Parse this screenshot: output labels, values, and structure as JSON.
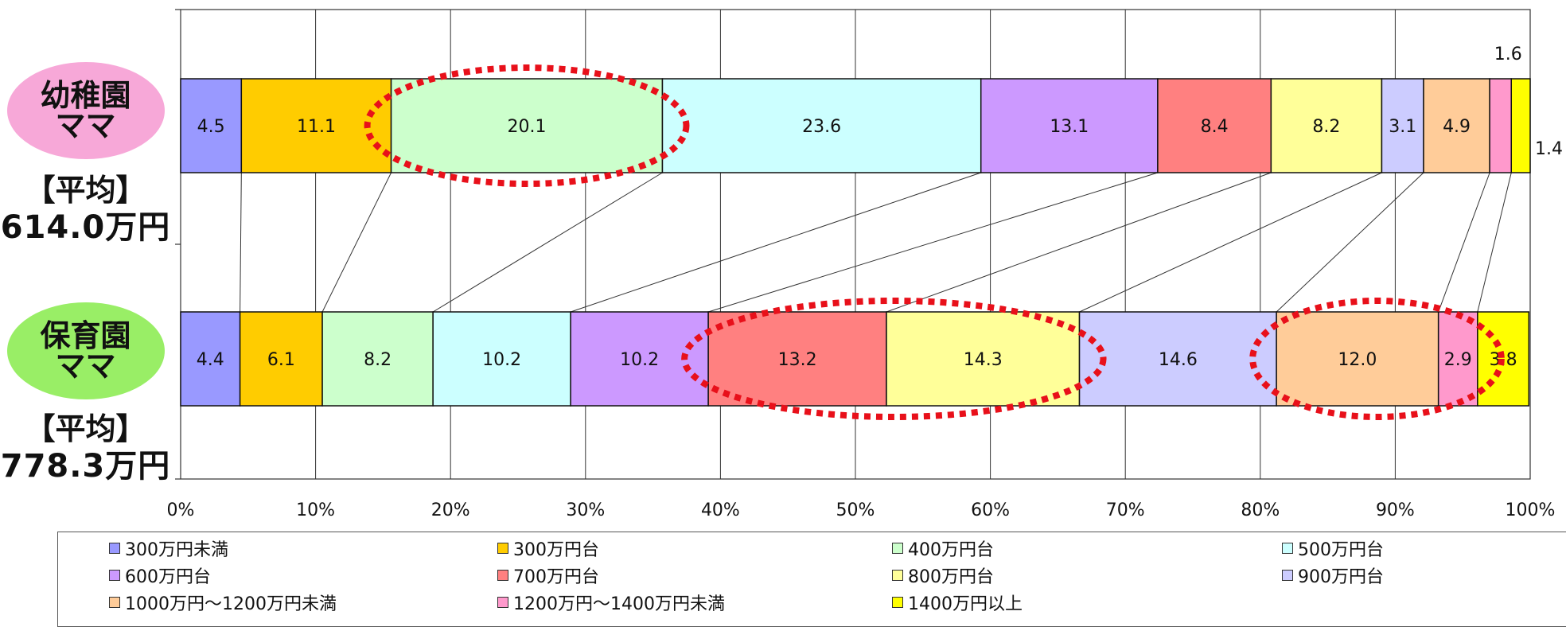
{
  "groups": [
    {
      "name": "幼稚園\nママ",
      "avg_head": "【平均】",
      "avg_value": "614.0万円",
      "bubble_color": "#F7A8D8"
    },
    {
      "name": "保育園\nママ",
      "avg_head": "【平均】",
      "avg_value": "778.3万円",
      "bubble_color": "#99EE66"
    }
  ],
  "chart_data": {
    "type": "bar",
    "orientation": "horizontal",
    "stacked": true,
    "percent": true,
    "categories": [
      "幼稚園ママ",
      "保育園ママ"
    ],
    "xlim": [
      0,
      100
    ],
    "x_ticks": [
      "0%",
      "10%",
      "20%",
      "30%",
      "40%",
      "50%",
      "60%",
      "70%",
      "80%",
      "90%",
      "100%"
    ],
    "grid": "vertical",
    "legend_position": "bottom",
    "series": [
      {
        "name": "300万円未満",
        "color": "#9999FF",
        "values": [
          4.5,
          4.4
        ],
        "labels": [
          "4.5",
          "4.4"
        ]
      },
      {
        "name": "300万円台",
        "color": "#FFCC00",
        "values": [
          11.1,
          6.1
        ],
        "labels": [
          "11.1",
          "6.1"
        ]
      },
      {
        "name": "400万円台",
        "color": "#CCFFCC",
        "values": [
          20.1,
          8.2
        ],
        "labels": [
          "20.1",
          "8.2"
        ]
      },
      {
        "name": "500万円台",
        "color": "#CCFFFF",
        "values": [
          23.6,
          10.2
        ],
        "labels": [
          "23.6",
          "10.2"
        ]
      },
      {
        "name": "600万円台",
        "color": "#CC99FF",
        "values": [
          13.1,
          10.2
        ],
        "labels": [
          "13.1",
          "10.2"
        ]
      },
      {
        "name": "700万円台",
        "color": "#FF8080",
        "values": [
          8.4,
          13.2
        ],
        "labels": [
          "8.4",
          "13.2"
        ]
      },
      {
        "name": "800万円台",
        "color": "#FFFF99",
        "values": [
          8.2,
          14.3
        ],
        "labels": [
          "8.2",
          "14.3"
        ]
      },
      {
        "name": "900万円台",
        "color": "#CCCCFF",
        "values": [
          3.1,
          14.6
        ],
        "labels": [
          "3.1",
          "14.6"
        ]
      },
      {
        "name": "1000万円～1200万円未満",
        "color": "#FFCC99",
        "values": [
          4.9,
          12.0
        ],
        "labels": [
          "4.9",
          "12.0"
        ]
      },
      {
        "name": "1200万円～1400万円未満",
        "color": "#FF99CC",
        "values": [
          1.6,
          2.9
        ],
        "labels": [
          "1.6",
          "2.9"
        ]
      },
      {
        "name": "1400万円以上",
        "color": "#FFFF00",
        "values": [
          1.4,
          3.8
        ],
        "labels": [
          "1.4",
          "3.8"
        ]
      }
    ],
    "highlights": [
      {
        "bar": 0,
        "from_series": 2,
        "to_series": 3
      },
      {
        "bar": 1,
        "from_series": 5,
        "to_series": 7
      },
      {
        "bar": 1,
        "from_series": 8,
        "to_series": 10
      }
    ],
    "highlight_color": "#E8101A"
  }
}
